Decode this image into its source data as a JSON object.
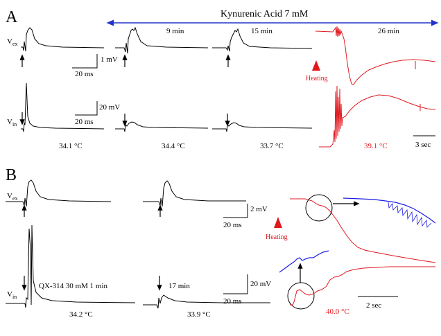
{
  "panel_a": {
    "letter": "A",
    "drug_label": "Kynurenic Acid 7 mM",
    "time_labels": [
      "9 min",
      "15 min",
      "26 min"
    ],
    "heating_label": "Heating",
    "vex_label_main": "V",
    "vex_label_sub": "ex",
    "vin_label_main": "V",
    "vin_label_sub": "in",
    "scale_1": {
      "amplitude": "1 mV",
      "time": "20 ms"
    },
    "scale_2": {
      "amplitude": "20 mV",
      "time": "20 ms"
    },
    "scale_3": {
      "time": "3 sec"
    },
    "temperatures": [
      "34.1 °C",
      "34.4 °C",
      "33.7 °C",
      "39.1 °C"
    ]
  },
  "panel_b": {
    "letter": "B",
    "vex_label_main": "V",
    "vex_label_sub": "ex",
    "vin_label_main": "V",
    "vin_label_sub": "in",
    "drug_label": "QX-314 30 mM 1 min",
    "time_label": "17 min",
    "heating_label": "Heating",
    "scale_1": {
      "amplitude": "2 mV",
      "time": "20 ms"
    },
    "scale_2": {
      "amplitude": "20 mV",
      "time": "20 ms"
    },
    "scale_3": {
      "time": "2 sec"
    },
    "temperatures": [
      "34.2 °C",
      "33.9 °C",
      "40.0 °C"
    ]
  },
  "colors": {
    "trace": "#000000",
    "heat_trace": "#e0191f",
    "zoom_trace": "#1a1ae6",
    "drug_bar": "#2233cc"
  }
}
